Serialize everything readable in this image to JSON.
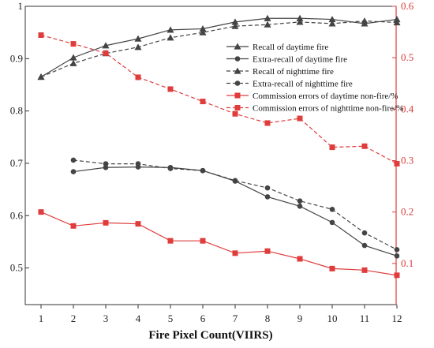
{
  "chart_data": {
    "type": "line",
    "title": "",
    "xlabel": "Fire Pixel Count(VIIRS)",
    "ylabel_left": "",
    "ylabel_right": "",
    "x": [
      1,
      2,
      3,
      4,
      5,
      6,
      7,
      8,
      9,
      10,
      11,
      12
    ],
    "x_tick_labels": [
      "1",
      "2",
      "3",
      "4",
      "5",
      "6",
      "7",
      "8",
      "9",
      "10",
      "11",
      "12"
    ],
    "ylim_left": [
      0.43,
      1.0
    ],
    "ylim_right": [
      0.02,
      0.6
    ],
    "y_ticks_left": [
      0.5,
      0.6,
      0.7,
      0.8,
      0.9,
      1.0
    ],
    "y_tick_labels_left": [
      "0.5",
      "0.6",
      "0.7",
      "0.8",
      "0.9",
      "1"
    ],
    "y_ticks_right": [
      0.1,
      0.2,
      0.3,
      0.4,
      0.5,
      0.6
    ],
    "y_tick_labels_right": [
      "0.1",
      "0.2",
      "0.3",
      "0.4",
      "0.5",
      "0.6"
    ],
    "grid": false,
    "legend_position": "top-right",
    "series": [
      {
        "name": "Recall of daytime fire",
        "axis": "left",
        "marker": "triangle",
        "dash": "solid",
        "color": "#444444",
        "values": [
          0.865,
          0.902,
          0.925,
          0.938,
          0.955,
          0.957,
          0.97,
          0.977,
          0.977,
          0.975,
          0.967,
          0.975
        ]
      },
      {
        "name": "Extra-recall of daytime fire",
        "axis": "left",
        "marker": "circle",
        "dash": "solid",
        "color": "#444444",
        "values": [
          null,
          0.684,
          0.692,
          0.693,
          0.692,
          0.686,
          0.666,
          0.636,
          0.618,
          0.587,
          0.543,
          0.523
        ]
      },
      {
        "name": "Recall of nighttime fire",
        "axis": "left",
        "marker": "triangle",
        "dash": "dashed",
        "color": "#444444",
        "values": [
          0.865,
          0.891,
          0.91,
          0.922,
          0.94,
          0.95,
          0.962,
          0.965,
          0.97,
          0.967,
          0.972,
          0.969
        ]
      },
      {
        "name": "Extra-recall of nighttime fire",
        "axis": "left",
        "marker": "circle",
        "dash": "dashed",
        "color": "#444444",
        "values": [
          null,
          0.706,
          0.699,
          0.699,
          0.69,
          0.686,
          0.667,
          0.653,
          0.628,
          0.612,
          0.567,
          0.535
        ]
      },
      {
        "name": "Commission errors of daytime non-fire/%",
        "axis": "right",
        "marker": "square",
        "dash": "solid",
        "color": "#e03c3c",
        "values": [
          0.2,
          0.173,
          0.179,
          0.177,
          0.144,
          0.144,
          0.12,
          0.124,
          0.109,
          0.09,
          0.087,
          0.077
        ]
      },
      {
        "name": "Commission errors of nighttime non-fire/%",
        "axis": "right",
        "marker": "square",
        "dash": "dashed",
        "color": "#e03c3c",
        "values": [
          0.544,
          0.527,
          0.509,
          0.462,
          0.439,
          0.415,
          0.391,
          0.373,
          0.382,
          0.326,
          0.328,
          0.294
        ]
      }
    ]
  }
}
